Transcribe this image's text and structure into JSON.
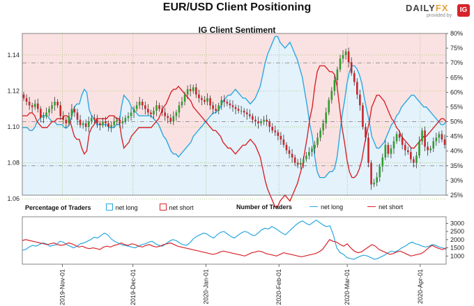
{
  "header": {
    "title": "EUR/USD Client Positioning",
    "subtitle": "IG Client Sentiment"
  },
  "brand": {
    "name_a": "DAILY",
    "name_b": "FX",
    "provided": "provided by",
    "logo": "IG"
  },
  "legend": {
    "pct_heading": "Percentage of Traders",
    "pct_long": "net long",
    "pct_short": "net short",
    "num_heading": "Number of Traders",
    "num_long": "net long",
    "num_short": "net short"
  },
  "colors": {
    "long": "#29a8e0",
    "short": "#d7232a",
    "bull": "#2e9e2e",
    "bear": "#c9252c",
    "long_fill": "#e4f2fb",
    "short_fill": "#fbe2e2"
  },
  "chart_data": [
    {
      "type": "candlestick",
      "title": "IG Client Sentiment",
      "y_ticks": [
        1.06,
        1.08,
        1.1,
        1.12,
        1.14
      ],
      "y_tick_labels": [
        "1.06",
        "1.08",
        "1.10",
        "1.12",
        "1.14"
      ],
      "ylim": [
        1.062,
        1.152
      ],
      "ylim_right": [
        25,
        80
      ],
      "right_ticks": [
        "25%",
        "30%",
        "35%",
        "40%",
        "45%",
        "50%",
        "55%",
        "60%",
        "65%",
        "70%",
        "75%",
        "80%"
      ],
      "x_start": "2019-10-15",
      "x_end": "2020-04-12",
      "x_ticks": [
        "2019-Nov-01",
        "2019-Dec-01",
        "2020-Jan-01",
        "2020-Feb-01",
        "2020-Mar-01",
        "2020-Apr-01"
      ],
      "x_tick_dates": [
        "2019-11-01",
        "2019-12-01",
        "2020-01-01",
        "2020-02-01",
        "2020-03-01",
        "2020-04-01"
      ],
      "close": [
        1.116,
        1.114,
        1.112,
        1.111,
        1.113,
        1.11,
        1.105,
        1.106,
        1.108,
        1.11,
        1.112,
        1.114,
        1.112,
        1.106,
        1.104,
        1.102,
        1.106,
        1.11,
        1.108,
        1.104,
        1.101,
        1.102,
        1.1,
        1.103,
        1.105,
        1.104,
        1.102,
        1.101,
        1.103,
        1.102,
        1.1,
        1.101,
        1.103,
        1.104,
        1.102,
        1.103,
        1.105,
        1.106,
        1.108,
        1.11,
        1.112,
        1.114,
        1.112,
        1.11,
        1.108,
        1.107,
        1.109,
        1.112,
        1.11,
        1.108,
        1.106,
        1.105,
        1.103,
        1.106,
        1.108,
        1.112,
        1.114,
        1.118,
        1.121,
        1.12,
        1.122,
        1.118,
        1.116,
        1.115,
        1.114,
        1.116,
        1.112,
        1.11,
        1.109,
        1.112,
        1.115,
        1.114,
        1.113,
        1.112,
        1.111,
        1.11,
        1.109,
        1.109,
        1.108,
        1.107,
        1.106,
        1.104,
        1.103,
        1.102,
        1.103,
        1.104,
        1.103,
        1.1,
        1.098,
        1.097,
        1.095,
        1.093,
        1.09,
        1.087,
        1.085,
        1.083,
        1.08,
        1.079,
        1.08,
        1.082,
        1.084,
        1.086,
        1.088,
        1.09,
        1.094,
        1.098,
        1.102,
        1.108,
        1.115,
        1.12,
        1.126,
        1.132,
        1.138,
        1.14,
        1.142,
        1.136,
        1.13,
        1.125,
        1.118,
        1.112,
        1.1,
        1.094,
        1.08,
        1.068,
        1.069,
        1.072,
        1.078,
        1.083,
        1.09,
        1.085,
        1.088,
        1.092,
        1.096,
        1.094,
        1.09,
        1.087,
        1.086,
        1.082,
        1.08,
        1.084,
        1.092,
        1.098,
        1.089,
        1.087,
        1.088,
        1.092,
        1.094,
        1.096,
        1.093,
        1.09
      ],
      "net_long_pct": [
        48,
        48,
        48,
        47,
        47,
        48,
        50,
        51,
        52,
        52,
        52,
        51,
        50,
        50,
        49,
        49,
        49,
        48,
        48,
        49,
        52,
        55,
        56,
        56,
        59,
        61,
        60,
        54,
        52,
        51,
        49,
        49,
        49,
        49,
        49,
        48,
        48,
        48,
        49,
        49,
        55,
        59,
        58,
        57,
        55,
        54,
        53,
        52,
        52,
        52,
        52,
        52,
        52,
        51,
        50,
        49,
        47,
        45,
        44,
        42,
        40,
        39,
        39,
        38,
        39,
        40,
        41,
        42,
        43,
        45,
        46,
        47,
        48,
        49,
        50,
        51,
        52,
        53,
        53,
        54,
        55,
        57,
        58,
        59,
        59,
        60,
        61,
        60,
        59,
        58,
        58,
        57,
        56,
        57,
        58,
        60,
        62,
        66,
        70,
        73,
        75,
        77,
        79,
        79,
        77,
        76,
        75,
        76,
        77,
        75,
        73,
        71,
        68,
        65,
        60,
        55,
        49,
        45,
        38,
        33,
        31,
        31,
        31,
        32,
        33,
        33,
        34,
        38,
        45,
        52,
        57,
        63,
        67,
        69,
        69,
        68,
        66,
        63,
        58,
        54,
        50,
        45,
        43,
        41,
        41,
        42,
        43,
        45,
        47,
        49,
        50,
        52,
        53,
        55,
        56,
        57,
        58,
        59,
        59,
        58,
        57,
        56,
        55,
        55,
        54,
        53,
        52,
        51,
        50,
        49,
        49,
        50
      ],
      "net_short_pct": [
        52,
        52,
        52,
        53,
        53,
        52,
        50,
        49,
        48,
        48,
        48,
        49,
        50,
        50,
        51,
        51,
        51,
        52,
        52,
        51,
        48,
        45,
        44,
        44,
        41,
        39,
        40,
        46,
        48,
        49,
        51,
        51,
        51,
        51,
        51,
        52,
        52,
        52,
        51,
        51,
        45,
        41,
        42,
        43,
        45,
        46,
        47,
        48,
        48,
        48,
        48,
        48,
        48,
        49,
        50,
        51,
        53,
        55,
        56,
        58,
        60,
        61,
        61,
        62,
        61,
        60,
        59,
        58,
        57,
        55,
        54,
        53,
        52,
        51,
        50,
        49,
        48,
        47,
        47,
        46,
        45,
        43,
        42,
        41,
        41,
        40,
        39,
        40,
        41,
        42,
        42,
        43,
        44,
        43,
        42,
        40,
        38,
        34,
        30,
        27,
        25,
        23,
        21,
        21,
        23,
        24,
        25,
        24,
        23,
        25,
        27,
        29,
        32,
        35,
        40,
        45,
        51,
        55,
        62,
        67,
        69,
        69,
        69,
        68,
        67,
        67,
        66,
        62,
        55,
        48,
        43,
        37,
        33,
        31,
        31,
        32,
        34,
        37,
        42,
        46,
        50,
        55,
        57,
        59,
        59,
        58,
        57,
        55,
        53,
        51,
        50,
        48,
        47,
        45,
        44,
        43,
        42,
        41,
        41,
        42,
        43,
        44,
        45,
        45,
        46,
        47,
        48,
        49,
        50,
        51,
        51,
        50
      ]
    },
    {
      "type": "line",
      "y_ticks": [
        1000,
        1500,
        2000,
        2500,
        3000
      ],
      "y_tick_labels": [
        "1000",
        "1500",
        "2000",
        "2500",
        "3000"
      ],
      "ylim": [
        500,
        3400
      ],
      "series": [
        {
          "name": "net long",
          "values": [
            1350,
            1400,
            1550,
            1650,
            1600,
            1700,
            1800,
            1750,
            1600,
            1650,
            1700,
            1900,
            1850,
            1700,
            1600,
            1500,
            1600,
            1750,
            1800,
            1900,
            2000,
            2150,
            2100,
            2250,
            2400,
            2300,
            2050,
            1900,
            1800,
            1700,
            1650,
            1600,
            1550,
            1500,
            1600,
            1700,
            1750,
            1850,
            1900,
            1750,
            1650,
            1600,
            1750,
            1900,
            2000,
            1950,
            1800,
            1700,
            1650,
            1800,
            2050,
            2200,
            2300,
            2400,
            2350,
            2200,
            2100,
            2300,
            2450,
            2500,
            2350,
            2200,
            2100,
            2250,
            2400,
            2500,
            2450,
            2300,
            2250,
            2400,
            2600,
            2700,
            2650,
            2800,
            2700,
            2550,
            2400,
            2300,
            2500,
            2700,
            2900,
            3050,
            3150,
            3000,
            2900,
            3050,
            3200,
            3050,
            2900,
            2800,
            2850,
            2300,
            1500,
            1200,
            1100,
            900,
            850,
            800,
            900,
            1000,
            1050,
            1000,
            900,
            800,
            850,
            950,
            1050,
            1200,
            1300,
            1250,
            1350,
            1500,
            1600,
            1750,
            1850,
            1750,
            1700,
            1600,
            1550,
            1600,
            1700,
            1650,
            1550,
            1500,
            1400
          ]
        },
        {
          "name": "net short",
          "values": [
            1950,
            2000,
            1950,
            1900,
            1850,
            1800,
            1750,
            1700,
            1750,
            1800,
            1700,
            1650,
            1700,
            1800,
            1750,
            1650,
            1550,
            1600,
            1500,
            1450,
            1500,
            1450,
            1400,
            1550,
            1600,
            1550,
            1650,
            1700,
            1800,
            1700,
            1650,
            1750,
            1700,
            1600,
            1550,
            1650,
            1700,
            1600,
            1550,
            1600,
            1700,
            1750,
            1800,
            1700,
            1600,
            1550,
            1500,
            1450,
            1400,
            1350,
            1300,
            1250,
            1200,
            1150,
            1100,
            1150,
            1250,
            1300,
            1250,
            1200,
            1150,
            1100,
            1050,
            1000,
            1100,
            1200,
            1250,
            1300,
            1250,
            1150,
            1100,
            1050,
            1000,
            1100,
            1200,
            1150,
            1100,
            1050,
            1000,
            950,
            1000,
            1050,
            1100,
            1150,
            1250,
            1400,
            1700,
            2000,
            1900,
            1850,
            1700,
            1600,
            1750,
            1500,
            1300,
            1200,
            1250,
            1400,
            1550,
            1700,
            1600,
            1400,
            1300,
            1200,
            1100,
            1150,
            1250,
            1300,
            1200,
            1100,
            1000,
            1050,
            1100,
            1150,
            1300,
            1500,
            1650,
            1550,
            1450,
            1400,
            1500
          ]
        }
      ]
    }
  ]
}
